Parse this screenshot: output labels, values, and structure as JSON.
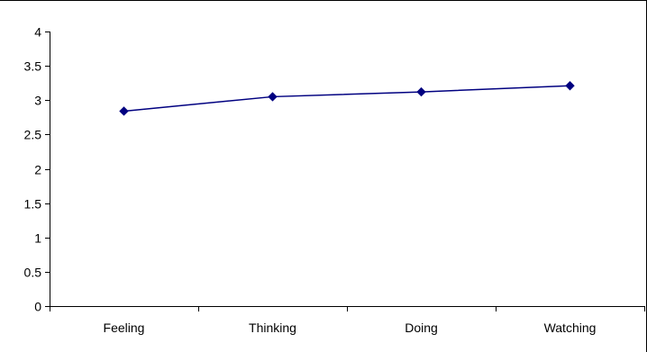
{
  "chart_data": {
    "type": "line",
    "title": "",
    "xlabel": "",
    "ylabel": "",
    "categories": [
      "Feeling",
      "Thinking",
      "Doing",
      "Watching"
    ],
    "series": [
      {
        "values": [
          2.84,
          3.05,
          3.12,
          3.21
        ],
        "color": "#000080",
        "marker": "diamond"
      }
    ],
    "ylim": [
      0,
      4
    ],
    "yticks": [
      0,
      0.5,
      1,
      1.5,
      2,
      2.5,
      3,
      3.5,
      4
    ],
    "ytick_labels": [
      "0",
      "0.5",
      "1",
      "1.5",
      "2",
      "2.5",
      "3",
      "3.5",
      "4"
    ],
    "grid": false,
    "legend": "none"
  }
}
